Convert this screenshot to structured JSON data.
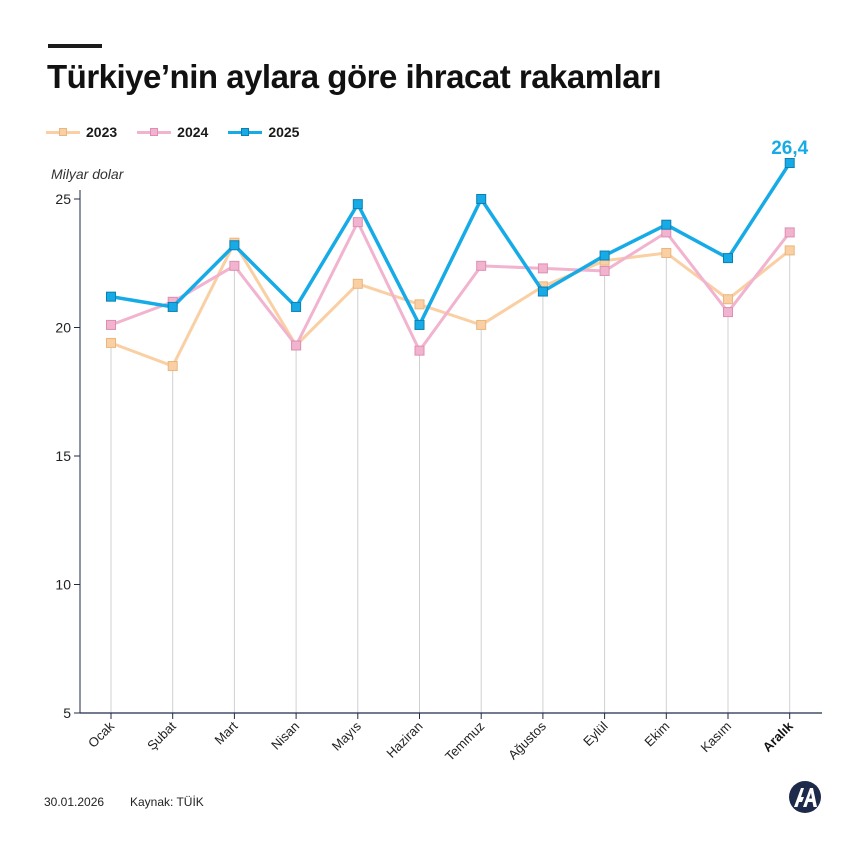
{
  "title": "Türkiye’nin aylara göre ihracat rakamları",
  "unit_label": "Milyar dolar",
  "footer": {
    "date": "30.01.2026",
    "source": "Kaynak: TÜİK"
  },
  "logo": {
    "text": "AA",
    "icon": "aa-logo-icon",
    "color": "#1e2a4a"
  },
  "colors": {
    "s2023": "#f9cfa3",
    "s2024": "#f2b3cf",
    "s2025": "#16abe6",
    "axis": "#1e2a4a",
    "guide": "#d0d0d0"
  },
  "chart_data": {
    "type": "line",
    "categories": [
      "Ocak",
      "Şubat",
      "Mart",
      "Nisan",
      "Mayıs",
      "Haziran",
      "Temmuz",
      "Ağustos",
      "Eylül",
      "Ekim",
      "Kasım",
      "Aralık"
    ],
    "highlight_category": "Aralık",
    "ylabel": "Milyar dolar",
    "ylim": [
      5,
      25.6
    ],
    "yticks": [
      5,
      10,
      15,
      20,
      25
    ],
    "legend_position": "top-left",
    "grid": "vertical guides at categories",
    "series": [
      {
        "name": "2023",
        "values": [
          19.4,
          18.5,
          23.3,
          19.3,
          21.7,
          20.9,
          20.1,
          21.6,
          22.6,
          22.9,
          21.1,
          23.0
        ]
      },
      {
        "name": "2024",
        "values": [
          20.1,
          21.0,
          22.4,
          19.3,
          24.1,
          19.1,
          22.4,
          22.3,
          22.2,
          23.7,
          20.6,
          23.7
        ]
      },
      {
        "name": "2025",
        "values": [
          21.2,
          20.8,
          23.2,
          20.8,
          24.8,
          20.1,
          25.0,
          21.4,
          22.8,
          24.0,
          22.7,
          26.4
        ]
      }
    ],
    "annotations": [
      {
        "series": "2025",
        "category": "Aralık",
        "text": "26,4"
      }
    ]
  }
}
